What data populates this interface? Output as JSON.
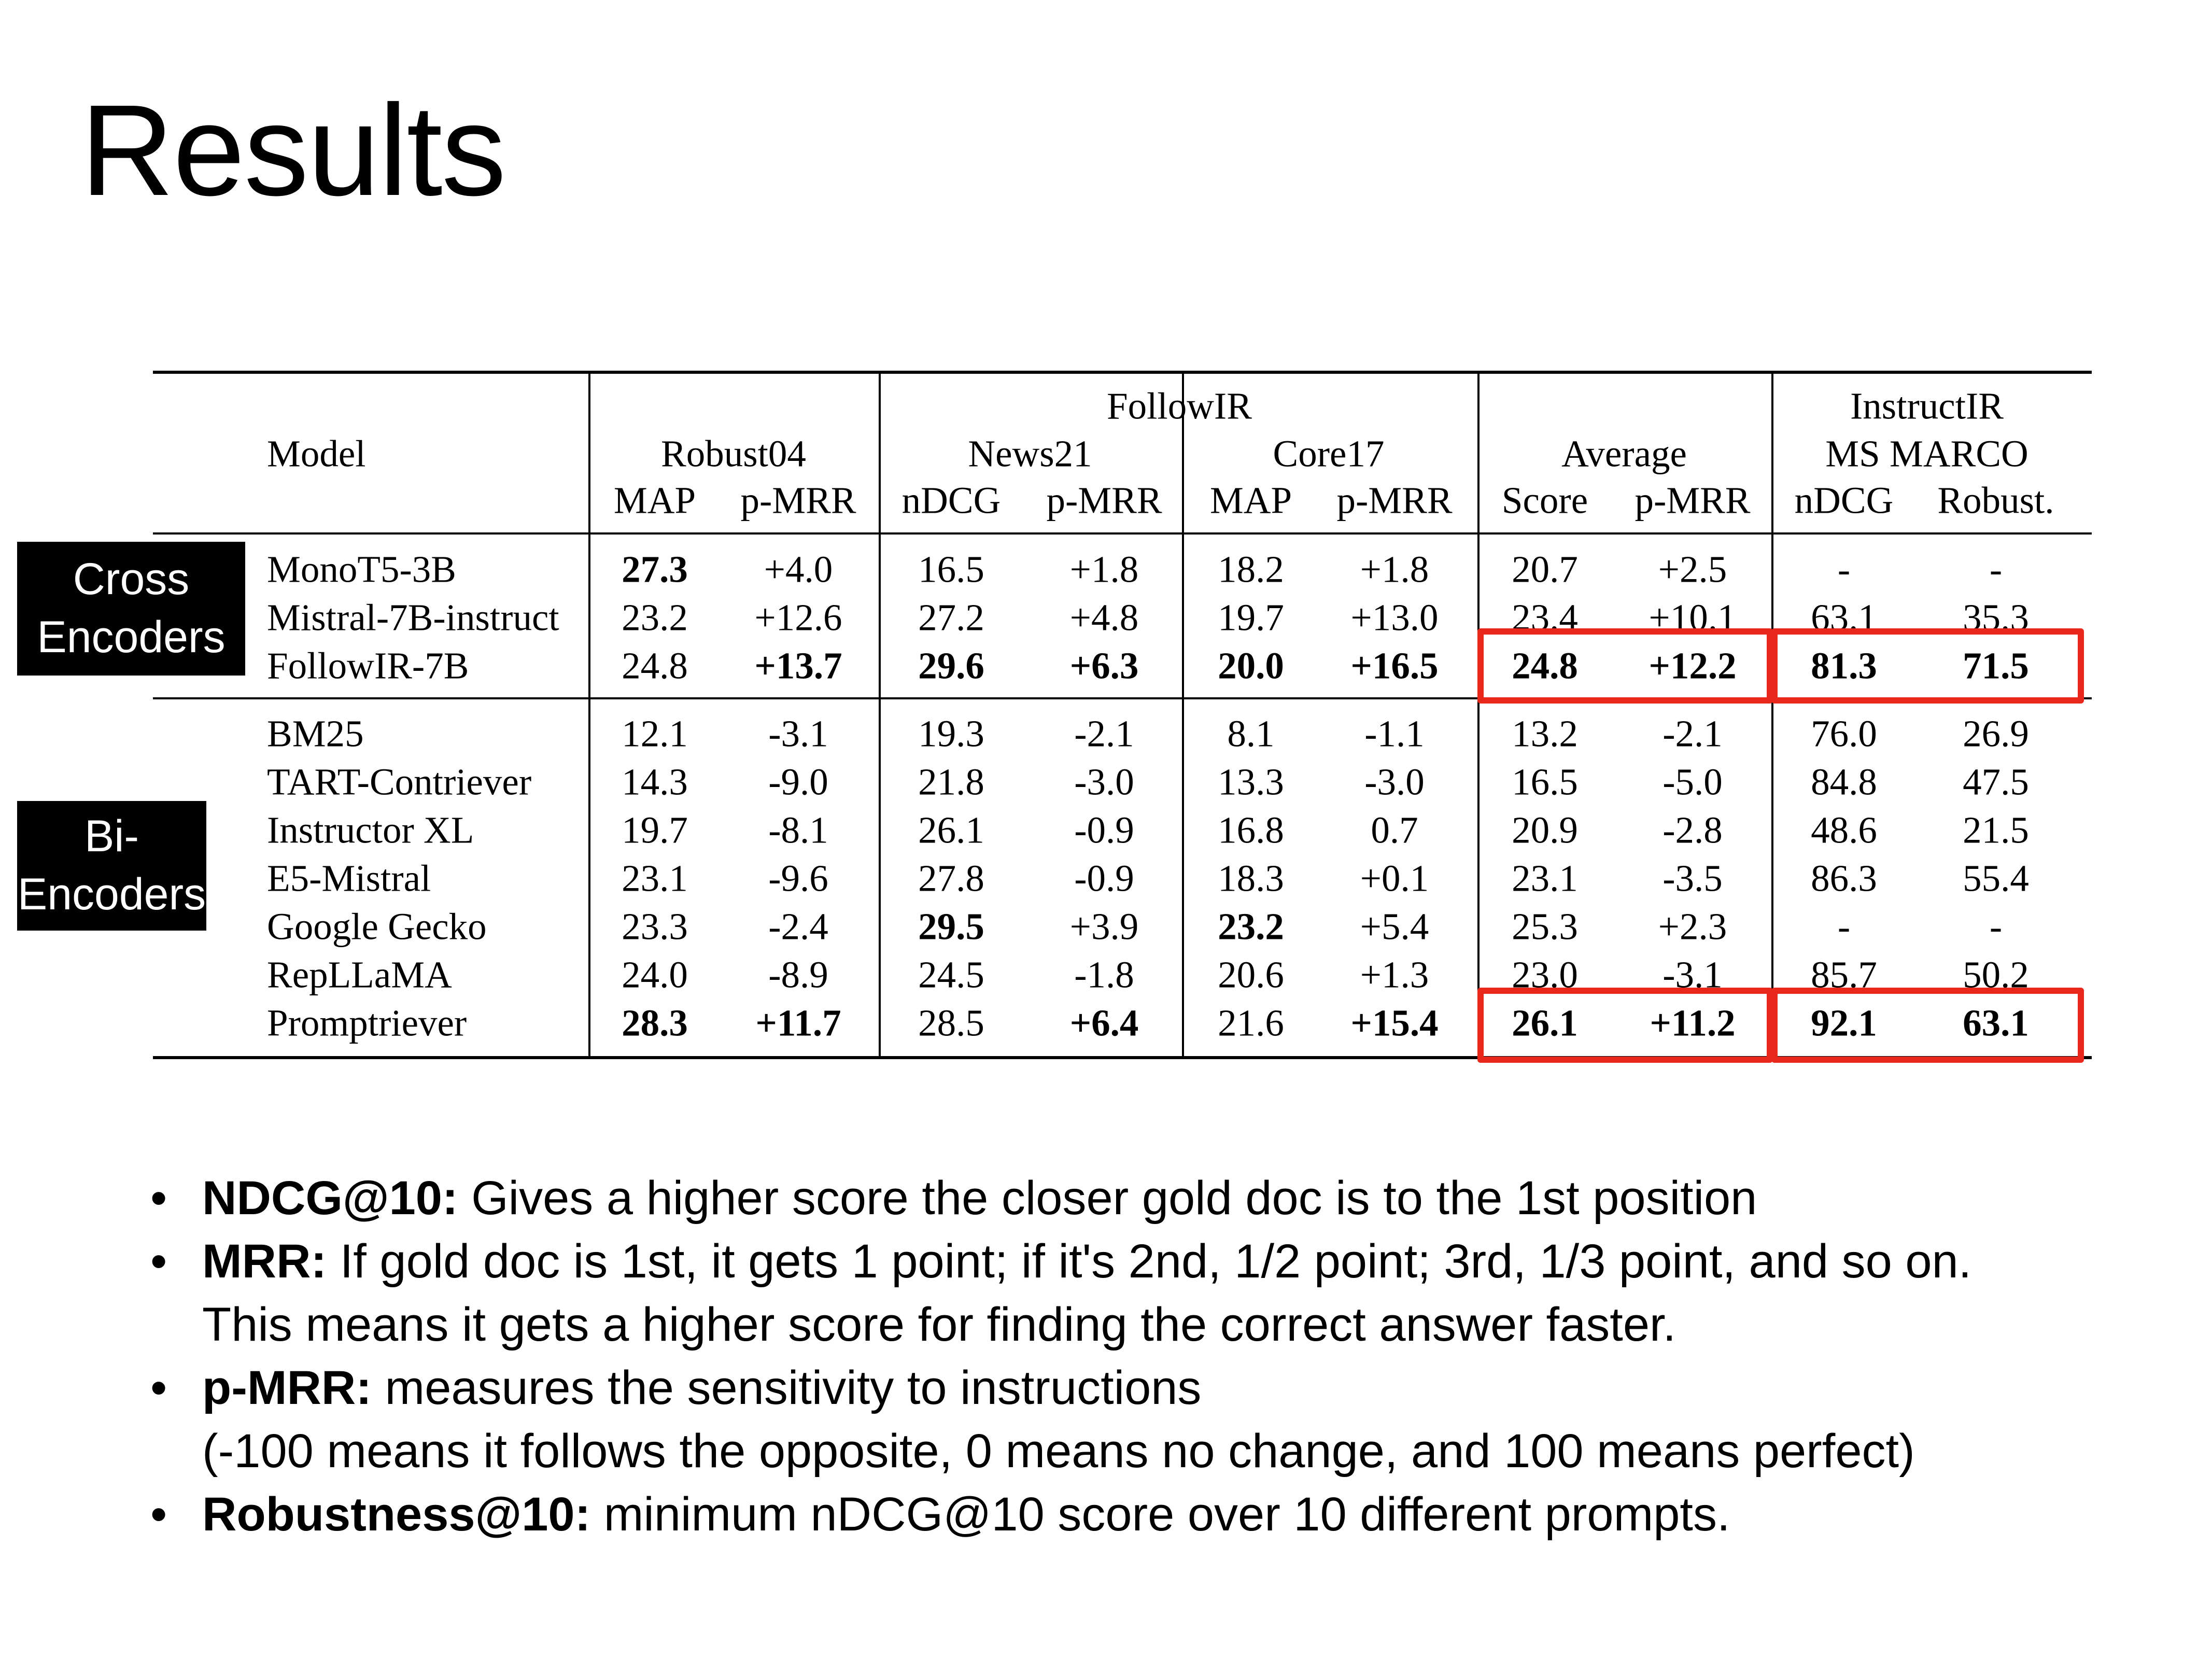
{
  "slide": {
    "title": "Results"
  },
  "side_labels": {
    "cross": [
      "Cross",
      "Encoders"
    ],
    "bi": [
      "Bi-",
      "Encoders"
    ]
  },
  "highlight_color": "#e8281a",
  "table": {
    "group_headers": {
      "followir": "FollowIR",
      "instructir": "InstructIR"
    },
    "model_header": "Model",
    "datasets": [
      "Robust04",
      "News21",
      "Core17",
      "Average",
      "MS MARCO"
    ],
    "metrics": [
      "MAP",
      "p-MRR",
      "nDCG",
      "p-MRR",
      "MAP",
      "p-MRR",
      "Score",
      "p-MRR",
      "nDCG",
      "Robust."
    ],
    "sections": [
      {
        "rows": [
          {
            "model": "MonoT5-3B",
            "values": [
              "27.3",
              "+4.0",
              "16.5",
              "+1.8",
              "18.2",
              "+1.8",
              "20.7",
              "+2.5",
              "-",
              "-"
            ],
            "bold": [
              0
            ]
          },
          {
            "model": "Mistral-7B-instruct",
            "values": [
              "23.2",
              "+12.6",
              "27.2",
              "+4.8",
              "19.7",
              "+13.0",
              "23.4",
              "+10.1",
              "63.1",
              "35.3"
            ],
            "bold": []
          },
          {
            "model": "FollowIR-7B",
            "values": [
              "24.8",
              "+13.7",
              "29.6",
              "+6.3",
              "20.0",
              "+16.5",
              "24.8",
              "+12.2",
              "81.3",
              "71.5"
            ],
            "bold": [
              1,
              2,
              3,
              4,
              5,
              6,
              7,
              8,
              9
            ]
          }
        ]
      },
      {
        "rows": [
          {
            "model": "BM25",
            "values": [
              "12.1",
              "-3.1",
              "19.3",
              "-2.1",
              "8.1",
              "-1.1",
              "13.2",
              "-2.1",
              "76.0",
              "26.9"
            ],
            "bold": []
          },
          {
            "model": "TART-Contriever",
            "values": [
              "14.3",
              "-9.0",
              "21.8",
              "-3.0",
              "13.3",
              "-3.0",
              "16.5",
              "-5.0",
              "84.8",
              "47.5"
            ],
            "bold": []
          },
          {
            "model": "Instructor XL",
            "values": [
              "19.7",
              "-8.1",
              "26.1",
              "-0.9",
              "16.8",
              "0.7",
              "20.9",
              "-2.8",
              "48.6",
              "21.5"
            ],
            "bold": []
          },
          {
            "model": "E5-Mistral",
            "values": [
              "23.1",
              "-9.6",
              "27.8",
              "-0.9",
              "18.3",
              "+0.1",
              "23.1",
              "-3.5",
              "86.3",
              "55.4"
            ],
            "bold": []
          },
          {
            "model": "Google Gecko",
            "values": [
              "23.3",
              "-2.4",
              "29.5",
              "+3.9",
              "23.2",
              "+5.4",
              "25.3",
              "+2.3",
              "-",
              "-"
            ],
            "bold": [
              2,
              4
            ]
          },
          {
            "model": "RepLLaMA",
            "values": [
              "24.0",
              "-8.9",
              "24.5",
              "-1.8",
              "20.6",
              "+1.3",
              "23.0",
              "-3.1",
              "85.7",
              "50.2"
            ],
            "bold": []
          },
          {
            "model": "Promptriever",
            "values": [
              "28.3",
              "+11.7",
              "28.5",
              "+6.4",
              "21.6",
              "+15.4",
              "26.1",
              "+11.2",
              "92.1",
              "63.1"
            ],
            "bold": [
              0,
              1,
              3,
              5,
              6,
              7,
              8,
              9
            ]
          }
        ]
      }
    ]
  },
  "notes": [
    {
      "term": "NDCG@10:",
      "lines": [
        "Gives a higher score the closer gold doc is to the 1st position"
      ]
    },
    {
      "term": "MRR:",
      "lines": [
        "If gold doc is 1st, it gets 1 point; if it's 2nd, 1/2 point; 3rd, 1/3 point, and so on.",
        "This means it gets a higher score for finding the correct answer faster."
      ]
    },
    {
      "term": "p-MRR:",
      "lines": [
        "measures the sensitivity to instructions",
        "(-100 means it follows the opposite, 0 means no change, and 100 means perfect)"
      ]
    },
    {
      "term": "Robustness@10:",
      "lines": [
        "minimum nDCG@10 score over 10 different prompts."
      ]
    }
  ]
}
